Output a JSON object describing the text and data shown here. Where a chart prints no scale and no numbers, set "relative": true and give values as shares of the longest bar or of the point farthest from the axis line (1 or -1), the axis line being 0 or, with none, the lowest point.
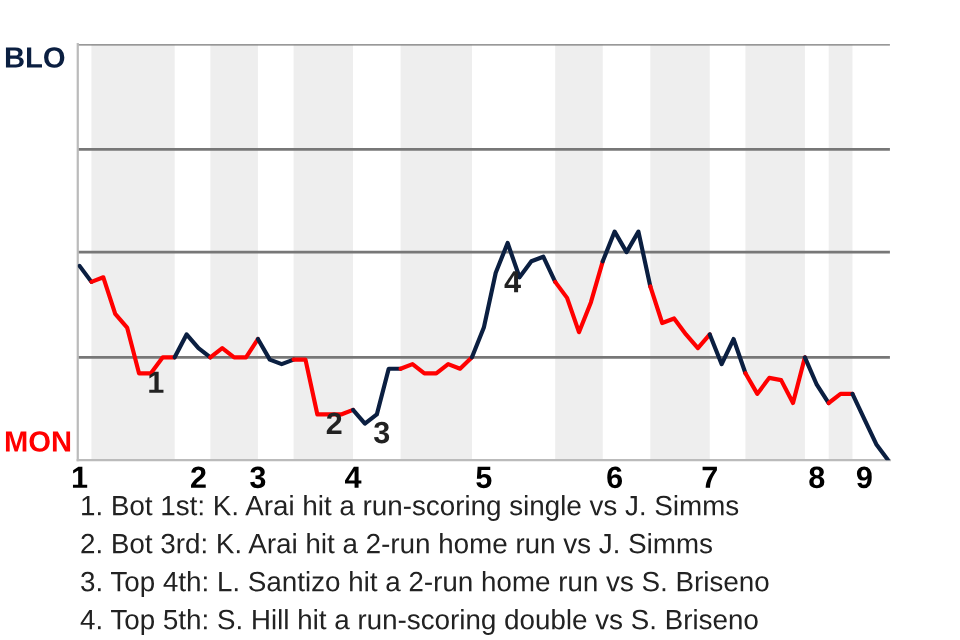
{
  "chart_data": {
    "type": "line",
    "relative": true,
    "categories": [
      "1",
      null,
      null,
      null,
      null,
      null,
      null,
      null,
      null,
      null,
      "2",
      null,
      null,
      null,
      null,
      "3",
      null,
      null,
      null,
      null,
      null,
      null,
      null,
      "4",
      null,
      null,
      null,
      null,
      null,
      null,
      null,
      null,
      null,
      null,
      "5",
      null,
      null,
      null,
      null,
      null,
      null,
      null,
      null,
      null,
      null,
      "6",
      null,
      null,
      null,
      null,
      null,
      null,
      null,
      "7",
      null,
      null,
      null,
      null,
      null,
      null,
      null,
      null,
      "8",
      null,
      null,
      null,
      "9",
      null,
      null
    ],
    "ref_lines": [
      {
        "axis": "y",
        "value": 0.45,
        "color": "#777777"
      },
      {
        "axis": "y",
        "value": 0.91,
        "color": "#777777"
      },
      {
        "axis": "y",
        "value": 1.36,
        "color": "#777777"
      },
      {
        "axis": "y",
        "value": 1.82,
        "color": "#777777"
      }
    ],
    "series": [
      {
        "color": "#0b1f41",
        "values": [
          0.85,
          0.78,
          null,
          null,
          null,
          null,
          null,
          null,
          null,
          null,
          null,
          null,
          null,
          null,
          null,
          null,
          null,
          null,
          null,
          null,
          null,
          null,
          null,
          null,
          null,
          null,
          null,
          null,
          null,
          null,
          null,
          null,
          null,
          null,
          null,
          null,
          null,
          null,
          null,
          null,
          null,
          null,
          null,
          null,
          null,
          null,
          null,
          null,
          null,
          null,
          null,
          null,
          null,
          null,
          null,
          null,
          null,
          null,
          null,
          null,
          null,
          null,
          null,
          null,
          null,
          null,
          null,
          null,
          null
        ]
      },
      {
        "color": "#ff0000",
        "values": [
          null,
          0.78,
          0.8,
          0.64,
          0.58,
          0.38,
          0.38,
          0.45,
          0.45,
          null,
          null,
          null,
          null,
          null,
          null,
          null,
          null,
          null,
          null,
          null,
          null,
          null,
          null,
          null,
          null,
          null,
          null,
          null,
          null,
          null,
          null,
          null,
          null,
          null,
          null,
          null,
          null,
          null,
          null,
          null,
          null,
          null,
          null,
          null,
          null,
          null,
          null,
          null,
          null,
          null,
          null,
          null,
          null,
          null,
          null,
          null,
          null,
          null,
          null,
          null,
          null,
          null,
          null,
          null,
          null,
          null,
          null,
          null,
          null
        ]
      },
      {
        "color": "#0b1f41",
        "values": [
          null,
          null,
          null,
          null,
          null,
          null,
          null,
          null,
          0.45,
          0.55,
          0.49,
          0.45,
          null,
          null,
          null,
          null,
          null,
          null,
          null,
          null,
          null,
          null,
          null,
          null,
          null,
          null,
          null,
          null,
          null,
          null,
          null,
          null,
          null,
          null,
          null,
          null,
          null,
          null,
          null,
          null,
          null,
          null,
          null,
          null,
          null,
          null,
          null,
          null,
          null,
          null,
          null,
          null,
          null,
          null,
          null,
          null,
          null,
          null,
          null,
          null,
          null,
          null,
          null,
          null,
          null,
          null,
          null,
          null,
          null
        ]
      },
      {
        "color": "#ff0000",
        "values": [
          null,
          null,
          null,
          null,
          null,
          null,
          null,
          null,
          null,
          null,
          null,
          0.45,
          0.49,
          0.45,
          0.45,
          0.53,
          null,
          null,
          null,
          null,
          null,
          null,
          null,
          null,
          null,
          null,
          null,
          null,
          null,
          null,
          null,
          null,
          null,
          null,
          null,
          null,
          null,
          null,
          null,
          null,
          null,
          null,
          null,
          null,
          null,
          null,
          null,
          null,
          null,
          null,
          null,
          null,
          null,
          null,
          null,
          null,
          null,
          null,
          null,
          null,
          null,
          null,
          null,
          null,
          null,
          null,
          null,
          null,
          null
        ]
      },
      {
        "color": "#0b1f41",
        "values": [
          null,
          null,
          null,
          null,
          null,
          null,
          null,
          null,
          null,
          null,
          null,
          null,
          null,
          null,
          null,
          0.53,
          0.44,
          0.42,
          0.44,
          null,
          null,
          null,
          null,
          null,
          null,
          null,
          null,
          null,
          null,
          null,
          null,
          null,
          null,
          null,
          null,
          null,
          null,
          null,
          null,
          null,
          null,
          null,
          null,
          null,
          null,
          null,
          null,
          null,
          null,
          null,
          null,
          null,
          null,
          null,
          null,
          null,
          null,
          null,
          null,
          null,
          null,
          null,
          null,
          null,
          null,
          null,
          null,
          null,
          null
        ]
      },
      {
        "color": "#ff0000",
        "values": [
          null,
          null,
          null,
          null,
          null,
          null,
          null,
          null,
          null,
          null,
          null,
          null,
          null,
          null,
          null,
          null,
          null,
          null,
          0.44,
          0.44,
          0.2,
          0.2,
          0.2,
          0.22,
          null,
          null,
          null,
          null,
          null,
          null,
          null,
          null,
          null,
          null,
          null,
          null,
          null,
          null,
          null,
          null,
          null,
          null,
          null,
          null,
          null,
          null,
          null,
          null,
          null,
          null,
          null,
          null,
          null,
          null,
          null,
          null,
          null,
          null,
          null,
          null,
          null,
          null,
          null,
          null,
          null,
          null,
          null,
          null,
          null
        ]
      },
      {
        "color": "#0b1f41",
        "values": [
          null,
          null,
          null,
          null,
          null,
          null,
          null,
          null,
          null,
          null,
          null,
          null,
          null,
          null,
          null,
          null,
          null,
          null,
          null,
          null,
          null,
          null,
          null,
          0.22,
          0.16,
          0.2,
          0.4,
          0.4,
          null,
          null,
          null,
          null,
          null,
          null,
          null,
          null,
          null,
          null,
          null,
          null,
          null,
          null,
          null,
          null,
          null,
          null,
          null,
          null,
          null,
          null,
          null,
          null,
          null,
          null,
          null,
          null,
          null,
          null,
          null,
          null,
          null,
          null,
          null,
          null,
          null,
          null,
          null,
          null,
          null
        ]
      },
      {
        "color": "#ff0000",
        "values": [
          null,
          null,
          null,
          null,
          null,
          null,
          null,
          null,
          null,
          null,
          null,
          null,
          null,
          null,
          null,
          null,
          null,
          null,
          null,
          null,
          null,
          null,
          null,
          null,
          null,
          null,
          null,
          0.4,
          0.42,
          0.38,
          0.38,
          0.42,
          0.4,
          0.45,
          null,
          null,
          null,
          null,
          null,
          null,
          null,
          null,
          null,
          null,
          null,
          null,
          null,
          null,
          null,
          null,
          null,
          null,
          null,
          null,
          null,
          null,
          null,
          null,
          null,
          null,
          null,
          null,
          null,
          null,
          null,
          null,
          null,
          null,
          null
        ]
      },
      {
        "color": "#0b1f41",
        "values": [
          null,
          null,
          null,
          null,
          null,
          null,
          null,
          null,
          null,
          null,
          null,
          null,
          null,
          null,
          null,
          null,
          null,
          null,
          null,
          null,
          null,
          null,
          null,
          null,
          null,
          null,
          null,
          null,
          null,
          null,
          null,
          null,
          null,
          0.45,
          0.58,
          0.82,
          0.95,
          0.8,
          0.87,
          0.89,
          0.78,
          null,
          null,
          null,
          null,
          null,
          null,
          null,
          null,
          null,
          null,
          null,
          null,
          null,
          null,
          null,
          null,
          null,
          null,
          null,
          null,
          null,
          null,
          null,
          null,
          null,
          null,
          null,
          null
        ]
      },
      {
        "color": "#ff0000",
        "values": [
          null,
          null,
          null,
          null,
          null,
          null,
          null,
          null,
          null,
          null,
          null,
          null,
          null,
          null,
          null,
          null,
          null,
          null,
          null,
          null,
          null,
          null,
          null,
          null,
          null,
          null,
          null,
          null,
          null,
          null,
          null,
          null,
          null,
          null,
          null,
          null,
          null,
          null,
          null,
          null,
          0.78,
          0.71,
          0.56,
          0.69,
          0.87,
          null,
          null,
          null,
          null,
          null,
          null,
          null,
          null,
          null,
          null,
          null,
          null,
          null,
          null,
          null,
          null,
          null,
          null,
          null,
          null,
          null,
          null,
          null,
          null
        ]
      },
      {
        "color": "#0b1f41",
        "values": [
          null,
          null,
          null,
          null,
          null,
          null,
          null,
          null,
          null,
          null,
          null,
          null,
          null,
          null,
          null,
          null,
          null,
          null,
          null,
          null,
          null,
          null,
          null,
          null,
          null,
          null,
          null,
          null,
          null,
          null,
          null,
          null,
          null,
          null,
          null,
          null,
          null,
          null,
          null,
          null,
          null,
          null,
          null,
          null,
          0.87,
          1,
          0.91,
          1,
          0.76,
          null,
          null,
          null,
          null,
          null,
          null,
          null,
          null,
          null,
          null,
          null,
          null,
          null,
          null,
          null,
          null,
          null,
          null,
          null,
          null
        ]
      },
      {
        "color": "#ff0000",
        "values": [
          null,
          null,
          null,
          null,
          null,
          null,
          null,
          null,
          null,
          null,
          null,
          null,
          null,
          null,
          null,
          null,
          null,
          null,
          null,
          null,
          null,
          null,
          null,
          null,
          null,
          null,
          null,
          null,
          null,
          null,
          null,
          null,
          null,
          null,
          null,
          null,
          null,
          null,
          null,
          null,
          null,
          null,
          null,
          null,
          null,
          null,
          null,
          null,
          0.76,
          0.6,
          0.62,
          0.55,
          0.49,
          0.55,
          null,
          null,
          null,
          null,
          null,
          null,
          null,
          null,
          null,
          null,
          null,
          null,
          null,
          null,
          null
        ]
      },
      {
        "color": "#0b1f41",
        "values": [
          null,
          null,
          null,
          null,
          null,
          null,
          null,
          null,
          null,
          null,
          null,
          null,
          null,
          null,
          null,
          null,
          null,
          null,
          null,
          null,
          null,
          null,
          null,
          null,
          null,
          null,
          null,
          null,
          null,
          null,
          null,
          null,
          null,
          null,
          null,
          null,
          null,
          null,
          null,
          null,
          null,
          null,
          null,
          null,
          null,
          null,
          null,
          null,
          null,
          null,
          null,
          null,
          null,
          0.55,
          0.42,
          0.53,
          0.38,
          null,
          null,
          null,
          null,
          null,
          null,
          null,
          null,
          null,
          null,
          null,
          null
        ]
      },
      {
        "color": "#ff0000",
        "values": [
          null,
          null,
          null,
          null,
          null,
          null,
          null,
          null,
          null,
          null,
          null,
          null,
          null,
          null,
          null,
          null,
          null,
          null,
          null,
          null,
          null,
          null,
          null,
          null,
          null,
          null,
          null,
          null,
          null,
          null,
          null,
          null,
          null,
          null,
          null,
          null,
          null,
          null,
          null,
          null,
          null,
          null,
          null,
          null,
          null,
          null,
          null,
          null,
          null,
          null,
          null,
          null,
          null,
          null,
          null,
          null,
          0.38,
          0.29,
          0.36,
          0.35,
          0.25,
          0.45,
          null,
          null,
          null,
          null,
          null,
          null,
          null
        ]
      },
      {
        "color": "#0b1f41",
        "values": [
          null,
          null,
          null,
          null,
          null,
          null,
          null,
          null,
          null,
          null,
          null,
          null,
          null,
          null,
          null,
          null,
          null,
          null,
          null,
          null,
          null,
          null,
          null,
          null,
          null,
          null,
          null,
          null,
          null,
          null,
          null,
          null,
          null,
          null,
          null,
          null,
          null,
          null,
          null,
          null,
          null,
          null,
          null,
          null,
          null,
          null,
          null,
          null,
          null,
          null,
          null,
          null,
          null,
          null,
          null,
          null,
          null,
          null,
          null,
          null,
          null,
          0.45,
          0.33,
          0.25,
          null,
          null,
          null,
          null,
          null
        ]
      },
      {
        "color": "#ff0000",
        "values": [
          null,
          null,
          null,
          null,
          null,
          null,
          null,
          null,
          null,
          null,
          null,
          null,
          null,
          null,
          null,
          null,
          null,
          null,
          null,
          null,
          null,
          null,
          null,
          null,
          null,
          null,
          null,
          null,
          null,
          null,
          null,
          null,
          null,
          null,
          null,
          null,
          null,
          null,
          null,
          null,
          null,
          null,
          null,
          null,
          null,
          null,
          null,
          null,
          null,
          null,
          null,
          null,
          null,
          null,
          null,
          null,
          null,
          null,
          null,
          null,
          null,
          null,
          null,
          0.25,
          0.29,
          0.29,
          null,
          null,
          null
        ]
      },
      {
        "color": "#0b1f41",
        "values": [
          null,
          null,
          null,
          null,
          null,
          null,
          null,
          null,
          null,
          null,
          null,
          null,
          null,
          null,
          null,
          null,
          null,
          null,
          null,
          null,
          null,
          null,
          null,
          null,
          null,
          null,
          null,
          null,
          null,
          null,
          null,
          null,
          null,
          null,
          null,
          null,
          null,
          null,
          null,
          null,
          null,
          null,
          null,
          null,
          null,
          null,
          null,
          null,
          null,
          null,
          null,
          null,
          null,
          null,
          null,
          null,
          null,
          null,
          null,
          null,
          null,
          null,
          null,
          null,
          null,
          0.29,
          0.18,
          0.07,
          0
        ]
      }
    ],
    "annotations": [
      "BLO",
      "MON",
      {
        "text": "1",
        "y": 0.38
      },
      {
        "text": "2",
        "y": 0.2
      },
      {
        "text": "3",
        "y": 0.16
      },
      {
        "text": "4",
        "y": 0.82
      },
      "1. Bot 1st: K. Arai hit a run-scoring single vs J. Simms",
      "2. Bot 3rd: K. Arai hit a 2-run home run vs J. Simms",
      "3. Top 4th: L. Santizo hit a 2-run home run vs S. Briseno",
      "4. Top 5th: S. Hill hit a run-scoring double vs S. Briseno"
    ]
  }
}
